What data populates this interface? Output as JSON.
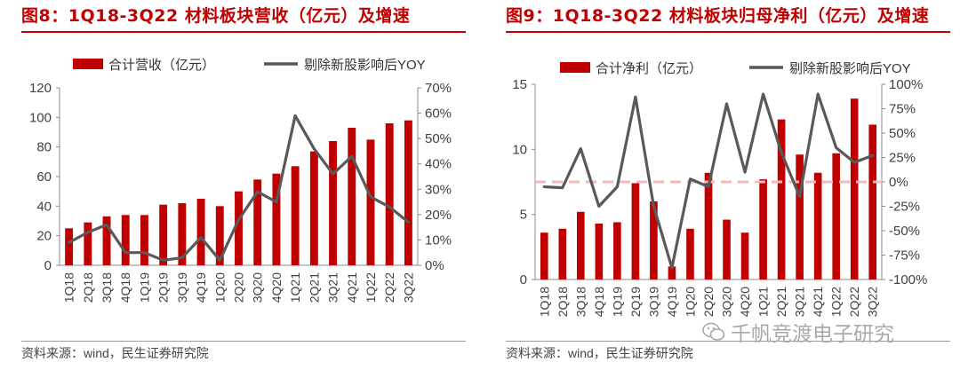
{
  "left": {
    "title": "图8：1Q18-3Q22 材料板块营收（亿元）及增速",
    "source": "资料来源：wind，民生证券研究院"
  },
  "right": {
    "title": "图9：1Q18-3Q22 材料板块归母净利（亿元）及增速",
    "source": "资料来源：wind，民生证券研究院"
  },
  "watermark": "千帆竞渡电子研究",
  "chart_data": [
    {
      "type": "bar",
      "title": "图8：1Q18-3Q22 材料板块营收（亿元）及增速",
      "categories": [
        "1Q18",
        "2Q18",
        "3Q18",
        "4Q18",
        "1Q19",
        "2Q19",
        "3Q19",
        "4Q19",
        "1Q20",
        "2Q20",
        "3Q20",
        "4Q20",
        "1Q21",
        "2Q21",
        "3Q21",
        "4Q21",
        "1Q22",
        "2Q22",
        "3Q22"
      ],
      "series": [
        {
          "name": "合计营收（亿元）",
          "kind": "bar",
          "axis": "left",
          "values": [
            25,
            29,
            33,
            34,
            34,
            41,
            42,
            45,
            40,
            50,
            58,
            62,
            67,
            77,
            84,
            93,
            85,
            96,
            98
          ]
        },
        {
          "name": "剔除新股影响后YOY",
          "kind": "line",
          "axis": "right",
          "values": [
            9,
            13,
            16,
            5,
            5,
            2,
            3,
            11,
            2,
            18,
            29,
            25,
            59,
            46,
            36,
            43,
            27,
            23,
            17
          ]
        }
      ],
      "ylim_left": [
        0,
        120
      ],
      "yticks_left": [
        0,
        20,
        40,
        60,
        80,
        100,
        120
      ],
      "ylim_right": [
        0,
        70
      ],
      "yticks_right": [
        0,
        10,
        20,
        30,
        40,
        50,
        60,
        70
      ],
      "ytick_suffix_right": "%",
      "colors": {
        "bar": "#c00000",
        "line": "#595959"
      }
    },
    {
      "type": "bar",
      "title": "图9：1Q18-3Q22 材料板块归母净利（亿元）及增速",
      "categories": [
        "1Q18",
        "2Q18",
        "3Q18",
        "4Q18",
        "1Q19",
        "2Q19",
        "3Q19",
        "4Q19",
        "1Q20",
        "2Q20",
        "3Q20",
        "4Q20",
        "1Q21",
        "2Q21",
        "3Q21",
        "4Q21",
        "1Q22",
        "2Q22",
        "3Q22"
      ],
      "series": [
        {
          "name": "合计净利（亿元）",
          "kind": "bar",
          "axis": "left",
          "values": [
            3.6,
            3.9,
            5.2,
            4.3,
            4.4,
            7.4,
            6.0,
            1.0,
            3.9,
            8.2,
            4.6,
            3.6,
            7.7,
            12.3,
            9.6,
            8.2,
            9.7,
            13.9,
            11.9
          ]
        },
        {
          "name": "剔除新股影响后YOY",
          "kind": "line",
          "axis": "right",
          "values": [
            -5,
            -6,
            34,
            -25,
            -5,
            87,
            -25,
            -88,
            3,
            -5,
            80,
            10,
            90,
            30,
            -15,
            90,
            35,
            20,
            27
          ]
        }
      ],
      "ylim_left": [
        0,
        15
      ],
      "yticks_left": [
        0,
        5,
        10,
        15
      ],
      "ylim_right": [
        -100,
        100
      ],
      "yticks_right": [
        -100,
        -75,
        -50,
        -25,
        0,
        25,
        50,
        75,
        100
      ],
      "ytick_suffix_right": "%",
      "reference_line": 0,
      "colors": {
        "bar": "#c00000",
        "line": "#595959",
        "reference": "#f4b8b8"
      }
    }
  ]
}
